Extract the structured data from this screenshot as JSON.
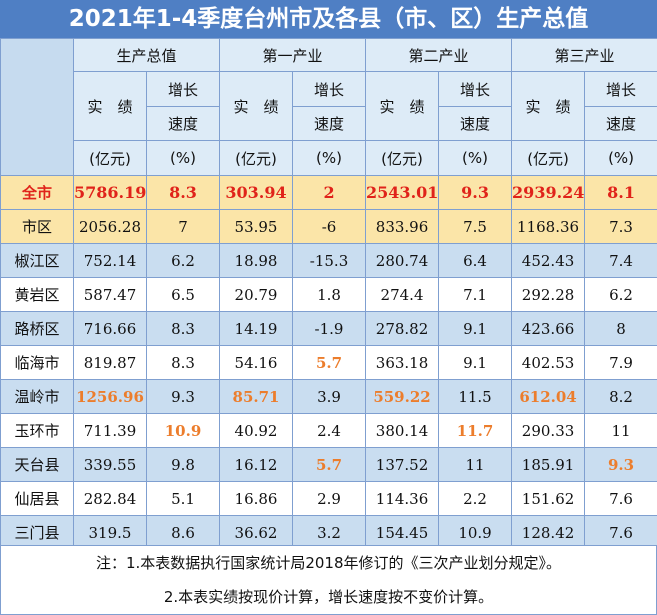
{
  "title": "2021年1-4季度台州市及各县（市、区）生产总值",
  "header": {
    "groups": [
      "生产总值",
      "第一产业",
      "第二产业",
      "第三产业"
    ],
    "actual_label": "实　绩",
    "growth_label_1": "增长",
    "growth_label_2": "速度",
    "unit_actual": "(亿元)",
    "unit_growth": "(%)"
  },
  "rows": [
    {
      "name": "全市",
      "v": [
        "5786.19",
        "8.3",
        "303.94",
        "2",
        "2543.01",
        "9.3",
        "2939.24",
        "8.1"
      ]
    },
    {
      "name": "市区",
      "v": [
        "2056.28",
        "7",
        "53.95",
        "-6",
        "833.96",
        "7.5",
        "1168.36",
        "7.3"
      ]
    },
    {
      "name": "椒江区",
      "v": [
        "752.14",
        "6.2",
        "18.98",
        "-15.3",
        "280.74",
        "6.4",
        "452.43",
        "7.4"
      ]
    },
    {
      "name": "黄岩区",
      "v": [
        "587.47",
        "6.5",
        "20.79",
        "1.8",
        "274.4",
        "7.1",
        "292.28",
        "6.2"
      ]
    },
    {
      "name": "路桥区",
      "v": [
        "716.66",
        "8.3",
        "14.19",
        "-1.9",
        "278.82",
        "9.1",
        "423.66",
        "8"
      ]
    },
    {
      "name": "临海市",
      "v": [
        "819.87",
        "8.3",
        "54.16",
        "5.7",
        "363.18",
        "9.1",
        "402.53",
        "7.9"
      ]
    },
    {
      "name": "温岭市",
      "v": [
        "1256.96",
        "9.3",
        "85.71",
        "3.9",
        "559.22",
        "11.5",
        "612.04",
        "8.2"
      ]
    },
    {
      "name": "玉环市",
      "v": [
        "711.39",
        "10.9",
        "40.92",
        "2.4",
        "380.14",
        "11.7",
        "290.33",
        "11"
      ]
    },
    {
      "name": "天台县",
      "v": [
        "339.55",
        "9.8",
        "16.12",
        "5.7",
        "137.52",
        "11",
        "185.91",
        "9.3"
      ]
    },
    {
      "name": "仙居县",
      "v": [
        "282.84",
        "5.1",
        "16.86",
        "2.9",
        "114.36",
        "2.2",
        "151.62",
        "7.6"
      ]
    },
    {
      "name": "三门县",
      "v": [
        "319.5",
        "8.6",
        "36.62",
        "3.2",
        "154.45",
        "10.9",
        "128.42",
        "7.6"
      ]
    }
  ],
  "notes": [
    "注：1.本表数据执行国家统计局2018年修订的《三次产业划分规定》。",
    "2.本表实绩按现价计算，增长速度按不变价计算。"
  ],
  "colors": {
    "title_bg": "#4f7fc4",
    "header_bg": "#ddebf7",
    "total_bg": "#fbe5a8",
    "blue_row_bg": "#c9ddf0",
    "total_text": "#e0231a",
    "highlight_text": "#ec7d2c"
  }
}
